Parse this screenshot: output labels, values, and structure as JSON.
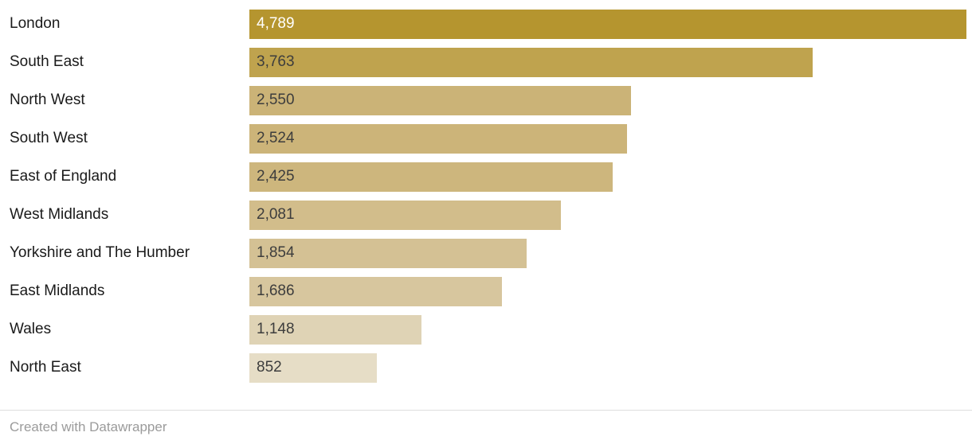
{
  "chart_data": {
    "type": "bar",
    "orientation": "horizontal",
    "categories": [
      "London",
      "South East",
      "North West",
      "South West",
      "East of England",
      "West Midlands",
      "Yorkshire and The Humber",
      "East Midlands",
      "Wales",
      "North East"
    ],
    "values": [
      4789,
      3763,
      2550,
      2524,
      2425,
      2081,
      1854,
      1686,
      1148,
      852
    ],
    "value_labels": [
      "4,789",
      "3,763",
      "2,550",
      "2,524",
      "2,425",
      "2,081",
      "1,854",
      "1,686",
      "1,148",
      "852"
    ],
    "bar_colors": [
      "#b5952f",
      "#bfa34e",
      "#cbb377",
      "#ccb479",
      "#cdb67d",
      "#d2bd8b",
      "#d4c194",
      "#d7c69e",
      "#dfd3b5",
      "#e6ddc6"
    ],
    "value_text_colors": [
      "#ffffff",
      "#3d3d3d",
      "#3d3d3d",
      "#3d3d3d",
      "#3d3d3d",
      "#3d3d3d",
      "#3d3d3d",
      "#3d3d3d",
      "#3d3d3d",
      "#3d3d3d"
    ],
    "xlim": [
      0,
      4789
    ],
    "grid": false,
    "legend": "none"
  },
  "footer": {
    "credit": "Created with Datawrapper"
  }
}
